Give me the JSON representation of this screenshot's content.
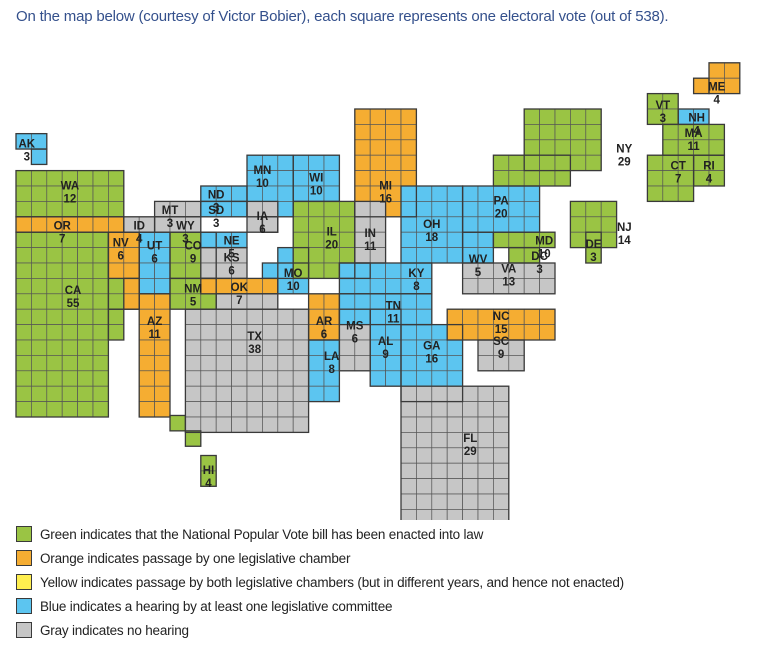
{
  "intro": "On the map below (courtesy of Victor Bobier), each square represents one electoral vote (out of 538).",
  "colors": {
    "green": "#9ac444",
    "orange": "#f5ad32",
    "yellow": "#ffef4f",
    "blue": "#5cc5f0",
    "gray": "#c6c6c6"
  },
  "states": [
    {
      "abbr": "AK",
      "ev": "3",
      "status": "blue"
    },
    {
      "abbr": "WA",
      "ev": "12",
      "status": "green"
    },
    {
      "abbr": "OR",
      "ev": "7",
      "status": "orange"
    },
    {
      "abbr": "CA",
      "ev": "55",
      "status": "green"
    },
    {
      "abbr": "NV",
      "ev": "6",
      "status": "orange"
    },
    {
      "abbr": "ID",
      "ev": "4",
      "status": "gray"
    },
    {
      "abbr": "MT",
      "ev": "3",
      "status": "gray"
    },
    {
      "abbr": "WY",
      "ev": "3",
      "status": "gray"
    },
    {
      "abbr": "UT",
      "ev": "6",
      "status": "blue"
    },
    {
      "abbr": "AZ",
      "ev": "11",
      "status": "orange"
    },
    {
      "abbr": "CO",
      "ev": "9",
      "status": "green"
    },
    {
      "abbr": "NM",
      "ev": "5",
      "status": "green"
    },
    {
      "abbr": "ND",
      "ev": "3",
      "status": "blue"
    },
    {
      "abbr": "SD",
      "ev": "3",
      "status": "blue"
    },
    {
      "abbr": "NE",
      "ev": "5",
      "status": "blue"
    },
    {
      "abbr": "KS",
      "ev": "6",
      "status": "gray"
    },
    {
      "abbr": "OK",
      "ev": "7",
      "status": "orange"
    },
    {
      "abbr": "TX",
      "ev": "38",
      "status": "gray"
    },
    {
      "abbr": "MN",
      "ev": "10",
      "status": "blue"
    },
    {
      "abbr": "IA",
      "ev": "6",
      "status": "gray"
    },
    {
      "abbr": "MO",
      "ev": "10",
      "status": "blue"
    },
    {
      "abbr": "AR",
      "ev": "6",
      "status": "orange"
    },
    {
      "abbr": "LA",
      "ev": "8",
      "status": "blue"
    },
    {
      "abbr": "WI",
      "ev": "10",
      "status": "blue"
    },
    {
      "abbr": "IL",
      "ev": "20",
      "status": "green"
    },
    {
      "abbr": "MS",
      "ev": "6",
      "status": "gray"
    },
    {
      "abbr": "MI",
      "ev": "16",
      "status": "orange"
    },
    {
      "abbr": "IN",
      "ev": "11",
      "status": "gray"
    },
    {
      "abbr": "KY",
      "ev": "8",
      "status": "blue"
    },
    {
      "abbr": "TN",
      "ev": "11",
      "status": "blue"
    },
    {
      "abbr": "AL",
      "ev": "9",
      "status": "blue"
    },
    {
      "abbr": "OH",
      "ev": "18",
      "status": "blue"
    },
    {
      "abbr": "GA",
      "ev": "16",
      "status": "blue"
    },
    {
      "abbr": "FL",
      "ev": "29",
      "status": "gray"
    },
    {
      "abbr": "WV",
      "ev": "5",
      "status": "blue"
    },
    {
      "abbr": "VA",
      "ev": "13",
      "status": "gray"
    },
    {
      "abbr": "NC",
      "ev": "15",
      "status": "orange"
    },
    {
      "abbr": "SC",
      "ev": "9",
      "status": "gray"
    },
    {
      "abbr": "PA",
      "ev": "20",
      "status": "blue"
    },
    {
      "abbr": "MD",
      "ev": "10",
      "status": "green"
    },
    {
      "abbr": "DC",
      "ev": "3",
      "status": "green"
    },
    {
      "abbr": "DE",
      "ev": "3",
      "status": "green"
    },
    {
      "abbr": "NJ",
      "ev": "14",
      "status": "green"
    },
    {
      "abbr": "NY",
      "ev": "29",
      "status": "green"
    },
    {
      "abbr": "VT",
      "ev": "3",
      "status": "green"
    },
    {
      "abbr": "NH",
      "ev": "4",
      "status": "blue"
    },
    {
      "abbr": "ME",
      "ev": "4",
      "status": "orange"
    },
    {
      "abbr": "MA",
      "ev": "11",
      "status": "green"
    },
    {
      "abbr": "CT",
      "ev": "7",
      "status": "green"
    },
    {
      "abbr": "RI",
      "ev": "4",
      "status": "green"
    },
    {
      "abbr": "HI",
      "ev": "4",
      "status": "green"
    }
  ],
  "legend": [
    {
      "status": "green",
      "text": "Green indicates that the National Popular Vote bill has been enacted into law"
    },
    {
      "status": "orange",
      "text": "Orange indicates passage by one legislative chamber"
    },
    {
      "status": "yellow",
      "text": "Yellow indicates passage by both legislative chambers (but in different years, and hence not enacted)"
    },
    {
      "status": "blue",
      "text": "Blue indicates a hearing by at least one legislative committee"
    },
    {
      "status": "gray",
      "text": "Gray indicates no hearing"
    }
  ]
}
